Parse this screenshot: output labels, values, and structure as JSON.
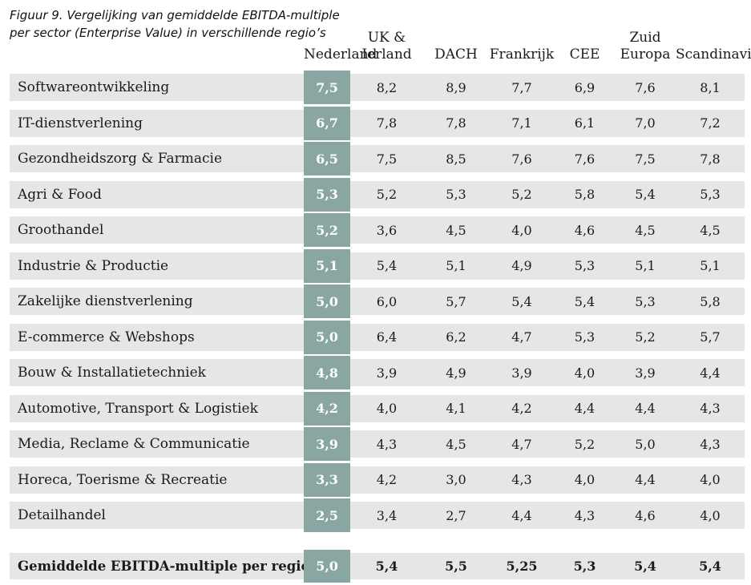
{
  "figure": {
    "title_line1": "Figuur 9. Vergelijking van gemiddelde EBITDA-multiple",
    "title_line2": "per sector (Enterprise Value) in verschillende regio’s"
  },
  "table": {
    "region_headers": {
      "nederland": "Nederland",
      "uk_ierland": "UK &\nIerland",
      "dach": "DACH",
      "frankrijk": "Frankrijk",
      "cee": "CEE",
      "zuid_europa": "Zuid\nEuropa",
      "scandinavie": "Scandinavië"
    },
    "rows": [
      {
        "sector": "Softwareontwikkeling",
        "nl": "7,5",
        "values": [
          "8,2",
          "8,9",
          "7,7",
          "6,9",
          "7,6",
          "8,1"
        ]
      },
      {
        "sector": "IT-dienstverlening",
        "nl": "6,7",
        "values": [
          "7,8",
          "7,8",
          "7,1",
          "6,1",
          "7,0",
          "7,2"
        ]
      },
      {
        "sector": "Gezondheidszorg & Farmacie",
        "nl": "6,5",
        "values": [
          "7,5",
          "8,5",
          "7,6",
          "7,6",
          "7,5",
          "7,8"
        ]
      },
      {
        "sector": "Agri & Food",
        "nl": "5,3",
        "values": [
          "5,2",
          "5,3",
          "5,2",
          "5,8",
          "5,4",
          "5,3"
        ]
      },
      {
        "sector": "Groothandel",
        "nl": "5,2",
        "values": [
          "3,6",
          "4,5",
          "4,0",
          "4,6",
          "4,5",
          "4,5"
        ]
      },
      {
        "sector": "Industrie & Productie",
        "nl": "5,1",
        "values": [
          "5,4",
          "5,1",
          "4,9",
          "5,3",
          "5,1",
          "5,1"
        ]
      },
      {
        "sector": "Zakelijke dienstverlening",
        "nl": "5,0",
        "values": [
          "6,0",
          "5,7",
          "5,4",
          "5,4",
          "5,3",
          "5,8"
        ]
      },
      {
        "sector": "E-commerce & Webshops",
        "nl": "5,0",
        "values": [
          "6,4",
          "6,2",
          "4,7",
          "5,3",
          "5,2",
          "5,7"
        ]
      },
      {
        "sector": "Bouw & Installatietechniek",
        "nl": "4,8",
        "values": [
          "3,9",
          "4,9",
          "3,9",
          "4,0",
          "3,9",
          "4,4"
        ]
      },
      {
        "sector": "Automotive, Transport & Logistiek",
        "nl": "4,2",
        "values": [
          "4,0",
          "4,1",
          "4,2",
          "4,4",
          "4,4",
          "4,3"
        ]
      },
      {
        "sector": "Media, Reclame & Communicatie",
        "nl": "3,9",
        "values": [
          "4,3",
          "4,5",
          "4,7",
          "5,2",
          "5,0",
          "4,3"
        ]
      },
      {
        "sector": "Horeca, Toerisme & Recreatie",
        "nl": "3,3",
        "values": [
          "4,2",
          "3,0",
          "4,3",
          "4,0",
          "4,4",
          "4,0"
        ]
      },
      {
        "sector": "Detailhandel",
        "nl": "2,5",
        "values": [
          "3,4",
          "2,7",
          "4,4",
          "4,3",
          "4,6",
          "4,0"
        ]
      }
    ],
    "footer": {
      "label": "Gemiddelde EBITDA-multiple per regio:",
      "nl": "5,0",
      "values": [
        "5,4",
        "5,5",
        "5,25",
        "5,3",
        "5,4",
        "5,4"
      ]
    }
  },
  "colors": {
    "accent_teal": "#8aa6a2",
    "row_background": "#e5e7e6"
  },
  "chart_data": {
    "type": "table",
    "title": "Figuur 9. Vergelijking van gemiddelde EBITDA-multiple per sector (Enterprise Value) in verschillende regio’s",
    "columns": [
      "Nederland",
      "UK & Ierland",
      "DACH",
      "Frankrijk",
      "CEE",
      "Zuid Europa",
      "Scandinavië"
    ],
    "rows": [
      {
        "sector": "Softwareontwikkeling",
        "values": [
          7.5,
          8.2,
          8.9,
          7.7,
          6.9,
          7.6,
          8.1
        ]
      },
      {
        "sector": "IT-dienstverlening",
        "values": [
          6.7,
          7.8,
          7.8,
          7.1,
          6.1,
          7.0,
          7.2
        ]
      },
      {
        "sector": "Gezondheidszorg & Farmacie",
        "values": [
          6.5,
          7.5,
          8.5,
          7.6,
          7.6,
          7.5,
          7.8
        ]
      },
      {
        "sector": "Agri & Food",
        "values": [
          5.3,
          5.2,
          5.3,
          5.2,
          5.8,
          5.4,
          5.3
        ]
      },
      {
        "sector": "Groothandel",
        "values": [
          5.2,
          3.6,
          4.5,
          4.0,
          4.6,
          4.5,
          4.5
        ]
      },
      {
        "sector": "Industrie & Productie",
        "values": [
          5.1,
          5.4,
          5.1,
          4.9,
          5.3,
          5.1,
          5.1
        ]
      },
      {
        "sector": "Zakelijke dienstverlening",
        "values": [
          5.0,
          6.0,
          5.7,
          5.4,
          5.4,
          5.3,
          5.8
        ]
      },
      {
        "sector": "E-commerce & Webshops",
        "values": [
          5.0,
          6.4,
          6.2,
          4.7,
          5.3,
          5.2,
          5.7
        ]
      },
      {
        "sector": "Bouw & Installatietechniek",
        "values": [
          4.8,
          3.9,
          4.9,
          3.9,
          4.0,
          3.9,
          4.4
        ]
      },
      {
        "sector": "Automotive, Transport & Logistiek",
        "values": [
          4.2,
          4.0,
          4.1,
          4.2,
          4.4,
          4.4,
          4.3
        ]
      },
      {
        "sector": "Media, Reclame & Communicatie",
        "values": [
          3.9,
          4.3,
          4.5,
          4.7,
          5.2,
          5.0,
          4.3
        ]
      },
      {
        "sector": "Horeca, Toerisme & Recreatie",
        "values": [
          3.3,
          4.2,
          3.0,
          4.3,
          4.0,
          4.4,
          4.0
        ]
      },
      {
        "sector": "Detailhandel",
        "values": [
          2.5,
          3.4,
          2.7,
          4.4,
          4.3,
          4.6,
          4.0
        ]
      }
    ],
    "footer_row": {
      "label": "Gemiddelde EBITDA-multiple per regio:",
      "values": [
        5.0,
        5.4,
        5.5,
        5.25,
        5.3,
        5.4,
        5.4
      ]
    },
    "notes": "Nederland column highlighted with teal cells; rightmost column (Scandinavië) clipped at image edge"
  }
}
